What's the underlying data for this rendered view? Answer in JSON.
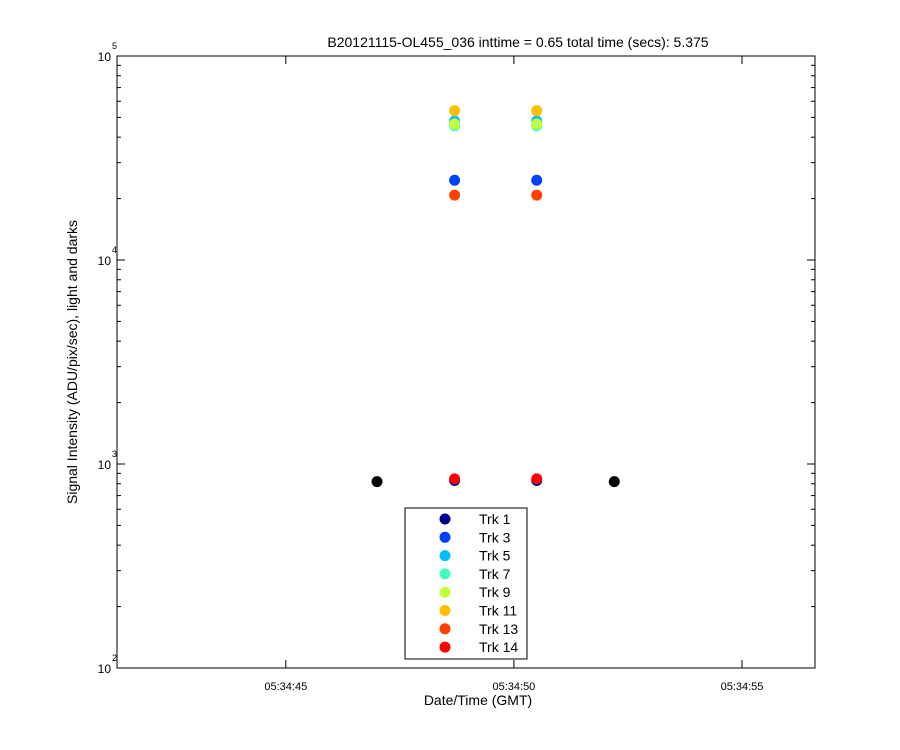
{
  "chart_data": {
    "type": "scatter",
    "title": "B20121115-OL455_036 inttime = 0.65 total time (secs): 5.375",
    "xlabel": "Date/Time (GMT)",
    "ylabel": "Signal Intensity (ADU/pix/sec), light and darks",
    "yscale": "log",
    "ylim": [
      100,
      100000
    ],
    "xlim": [
      "05:34:41.3",
      "05:34:56.6"
    ],
    "x_ticks": [
      "05:34:45",
      "05:34:50",
      "05:34:55"
    ],
    "y_ticks": [
      {
        "base": "10",
        "exp": "2"
      },
      {
        "base": "10",
        "exp": "3"
      },
      {
        "base": "10",
        "exp": "4"
      },
      {
        "base": "10",
        "exp": "5"
      }
    ],
    "grid": false,
    "legend_position": "bottom-center",
    "series": [
      {
        "name": "Trk 1",
        "color": "#00008f",
        "x": [
          "05:34:48.7",
          "05:34:50.5"
        ],
        "y": [
          830,
          830
        ]
      },
      {
        "name": "Trk 3",
        "color": "#0040ff",
        "x": [
          "05:34:48.7",
          "05:34:50.5"
        ],
        "y": [
          24600,
          24600
        ]
      },
      {
        "name": "Trk 5",
        "color": "#00bfff",
        "x": [
          "05:34:48.7",
          "05:34:50.5"
        ],
        "y": [
          48000,
          48000
        ]
      },
      {
        "name": "Trk 7",
        "color": "#40ffbf",
        "x": [
          "05:34:48.7",
          "05:34:50.5"
        ],
        "y": [
          45500,
          45500
        ]
      },
      {
        "name": "Trk 9",
        "color": "#bfff40",
        "x": [
          "05:34:48.7",
          "05:34:50.5"
        ],
        "y": [
          46500,
          46500
        ]
      },
      {
        "name": "Trk 11",
        "color": "#ffbf00",
        "x": [
          "05:34:48.7",
          "05:34:50.5"
        ],
        "y": [
          54000,
          54000
        ]
      },
      {
        "name": "Trk 13",
        "color": "#ff4000",
        "x": [
          "05:34:48.7",
          "05:34:50.5"
        ],
        "y": [
          20800,
          20800
        ]
      },
      {
        "name": "Trk 14",
        "color": "#ff0000",
        "x": [
          "05:34:48.7",
          "05:34:50.5"
        ],
        "y": [
          845,
          845
        ]
      }
    ],
    "darks": {
      "color": "#000000",
      "x": [
        "05:34:47.0",
        "05:34:52.2"
      ],
      "y": [
        820,
        820
      ]
    }
  }
}
